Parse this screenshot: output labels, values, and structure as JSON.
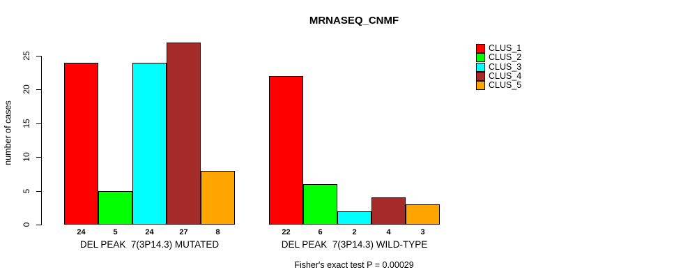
{
  "title": "MRNASEQ_CNMF",
  "footnote": "Fisher's exact test P = 0.00029",
  "colors": {
    "background": "#ffffff",
    "axis": "#000000",
    "bar_border": "#000000"
  },
  "chart_data": {
    "type": "bar",
    "title": "MRNASEQ_CNMF",
    "xlabel": "",
    "ylabel": "number of cases",
    "yticks": [
      0,
      5,
      10,
      15,
      20,
      25
    ],
    "ylim": [
      0,
      27.5
    ],
    "grid": false,
    "legend_position": "right",
    "categories": [
      "DEL PEAK  7(3P14.3) MUTATED",
      "DEL PEAK  7(3P14.3) WILD-TYPE"
    ],
    "series": [
      {
        "name": "CLUS_1",
        "color": "#ff0000",
        "values": [
          24,
          22
        ]
      },
      {
        "name": "CLUS_2",
        "color": "#00ff00",
        "values": [
          5,
          6
        ]
      },
      {
        "name": "CLUS_3",
        "color": "#00ffff",
        "values": [
          24,
          2
        ]
      },
      {
        "name": "CLUS_4",
        "color": "#a52a2a",
        "values": [
          27,
          4
        ]
      },
      {
        "name": "CLUS_5",
        "color": "#ffa500",
        "values": [
          8,
          3
        ]
      }
    ],
    "bar_value_labels": [
      [
        24,
        5,
        24,
        27,
        8
      ],
      [
        22,
        6,
        2,
        4,
        3
      ]
    ],
    "footnote": "Fisher's exact test P = 0.00029"
  }
}
